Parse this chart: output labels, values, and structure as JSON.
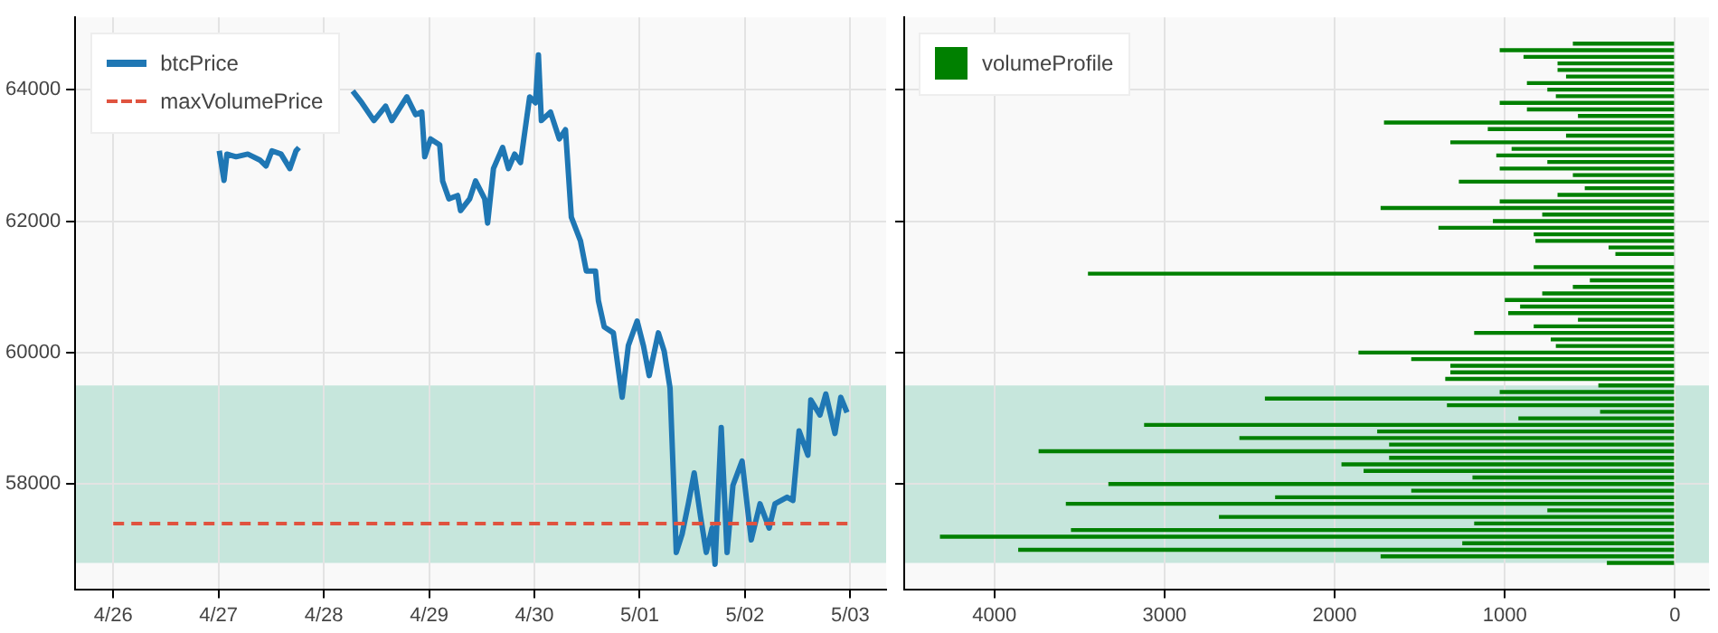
{
  "chart_data": [
    {
      "type": "line",
      "series": [
        {
          "name": "btcPrice",
          "color": "#1f77b4",
          "x": [
            "--04-27T00:10",
            "--04-27T01:15",
            "--04-27T01:55",
            "--04-27T04:00",
            "--04-27T06:40",
            "--04-27T09:25",
            "--04-27T10:50",
            "--04-27T12:10",
            "--04-27T14:15",
            "--04-27T16:15",
            "--04-27T17:40",
            "--04-27T18:20",
            "--04-28T00:00",
            "--04-28T06:35",
            "--04-28T08:40",
            "--04-28T11:25",
            "--04-28T14:05",
            "--04-28T15:30",
            "--04-28T18:55",
            "--04-28T20:55",
            "--04-28T22:20",
            "--04-28T23:00",
            "--04-29T00:20",
            "--04-29T02:25",
            "--04-29T03:05",
            "--04-29T04:30",
            "--04-29T06:30",
            "--04-29T07:10",
            "--04-29T09:15",
            "--04-29T10:35",
            "--04-29T12:40",
            "--04-29T13:20",
            "--04-29T14:40",
            "--04-29T16:45",
            "--04-29T18:05",
            "--04-29T19:30",
            "--04-29T20:50",
            "--04-29T22:55",
            "--04-30T00:15",
            "--04-30T00:55",
            "--04-30T01:35",
            "--04-30T03:40",
            "--04-30T05:40",
            "--04-30T07:05",
            "--04-30T08:25",
            "--04-30T10:30",
            "--04-30T11:50",
            "--04-30T13:55",
            "--04-30T14:35",
            "--04-30T15:55",
            "--04-30T18:00",
            "--04-30T20:00",
            "--04-30T21:25",
            "--04-30T23:25",
            "--05-01T00:50",
            "--05-01T02:10",
            "--05-01T04:15",
            "--05-01T05:35",
            "--05-01T06:55",
            "--05-01T08:20",
            "--05-01T09:40",
            "--05-01T11:05",
            "--05-01T12:25",
            "--05-01T13:50",
            "--05-01T15:10",
            "--05-01T16:30",
            "--05-01T17:10",
            "--05-01T18:35",
            "--05-01T19:55",
            "--05-01T21:15",
            "--05-01T23:20",
            "--05-02T01:25",
            "--05-02T03:25",
            "--05-02T05:30",
            "--05-02T06:50",
            "--05-02T09:35",
            "--05-02T10:55",
            "--05-02T12:20",
            "--05-02T14:20",
            "--05-02T15:00",
            "--05-02T17:05",
            "--05-02T18:25",
            "--05-02T20:30",
            "--05-02T21:50",
            "--05-02T23:15"
          ],
          "values": [
            63070,
            62620,
            63020,
            62980,
            63020,
            62930,
            62840,
            63070,
            63020,
            62800,
            63070,
            63120,
            null,
            63980,
            63800,
            63530,
            63750,
            63530,
            63890,
            63620,
            63660,
            62980,
            63250,
            63160,
            62610,
            62340,
            62390,
            62160,
            62340,
            62610,
            62340,
            61970,
            62800,
            63120,
            62800,
            63020,
            62890,
            63890,
            63800,
            64530,
            63530,
            63660,
            63250,
            63390,
            62060,
            61700,
            61240,
            61240,
            60790,
            60390,
            60300,
            59320,
            60110,
            60480,
            60110,
            59650,
            60300,
            60020,
            59460,
            56960,
            57240,
            57700,
            58170,
            57520,
            56960,
            57330,
            56780,
            58860,
            56960,
            57980,
            58350,
            57150,
            57700,
            57330,
            57700,
            57800,
            57750,
            58810,
            58440,
            59280,
            59050,
            59370,
            58770,
            59320,
            59090
          ]
        }
      ],
      "xlim": [
        "--04-25T15:20",
        "--05-03T08:10"
      ],
      "xticks": [
        {
          "value": "--04-26",
          "label": "4/26"
        },
        {
          "value": "--04-27",
          "label": "4/27"
        },
        {
          "value": "--04-28",
          "label": "4/28"
        },
        {
          "value": "--04-29",
          "label": "4/29"
        },
        {
          "value": "--04-30",
          "label": "4/30"
        },
        {
          "value": "--05-01",
          "label": "5/01"
        },
        {
          "value": "--05-02",
          "label": "5/02"
        },
        {
          "value": "--05-03",
          "label": "5/03"
        }
      ],
      "ylim": [
        56400,
        65100
      ],
      "yticks": [
        58000,
        60000,
        62000,
        64000
      ],
      "ref_lines": [
        {
          "axis": "y",
          "value": 57400,
          "label": "maxVolumePrice",
          "color": "#e0533f",
          "line_style": "dashed"
        }
      ],
      "bands": [
        {
          "axis": "y",
          "from": 56800,
          "to": 59500,
          "color": "#c6e6dc"
        }
      ],
      "grid": true,
      "legend": "top left"
    },
    {
      "type": "bar",
      "orientation": "horizontal",
      "series": [
        {
          "name": "volumeProfile",
          "color": "#008000",
          "x": [
            64700,
            64600,
            64500,
            64400,
            64300,
            64200,
            64100,
            64000,
            63900,
            63800,
            63700,
            63600,
            63500,
            63400,
            63300,
            63200,
            63100,
            63000,
            62900,
            62800,
            62700,
            62600,
            62500,
            62400,
            62300,
            62200,
            62100,
            62000,
            61900,
            61800,
            61700,
            61600,
            61500,
            61400,
            61300,
            61200,
            61100,
            61000,
            60900,
            60800,
            60700,
            60600,
            60500,
            60400,
            60300,
            60200,
            60100,
            60000,
            59900,
            59800,
            59700,
            59600,
            59500,
            59400,
            59300,
            59200,
            59100,
            59000,
            58900,
            58800,
            58700,
            58600,
            58500,
            58400,
            58300,
            58200,
            58100,
            58000,
            57900,
            57800,
            57700,
            57600,
            57500,
            57400,
            57300,
            57200,
            57100,
            57000,
            56900,
            56800
          ],
          "values": [
            600,
            1030,
            890,
            690,
            690,
            640,
            870,
            750,
            700,
            1030,
            870,
            570,
            1710,
            1100,
            640,
            1320,
            960,
            1050,
            750,
            1030,
            600,
            1270,
            530,
            690,
            1030,
            1730,
            780,
            1070,
            1390,
            830,
            820,
            390,
            350,
            0,
            830,
            3450,
            500,
            600,
            780,
            1000,
            910,
            980,
            570,
            830,
            1180,
            730,
            700,
            1860,
            1550,
            1320,
            1320,
            1350,
            450,
            1030,
            2410,
            1340,
            440,
            920,
            3120,
            1750,
            2560,
            1680,
            3740,
            1680,
            1960,
            1830,
            1190,
            3330,
            1550,
            2350,
            3580,
            750,
            2680,
            1180,
            3550,
            4320,
            1250,
            3860,
            1730,
            400
          ]
        }
      ],
      "xlim": [
        4530,
        -200
      ],
      "xticks": [
        4000,
        3000,
        2000,
        1000,
        0
      ],
      "ylim": [
        56400,
        65100
      ],
      "yticks": [
        58000,
        60000,
        62000,
        64000
      ],
      "bands": [
        {
          "axis": "y",
          "from": 56800,
          "to": 59500,
          "color": "#c6e6dc"
        }
      ],
      "grid": true,
      "legend": "top left",
      "tick_labels": "x"
    }
  ]
}
